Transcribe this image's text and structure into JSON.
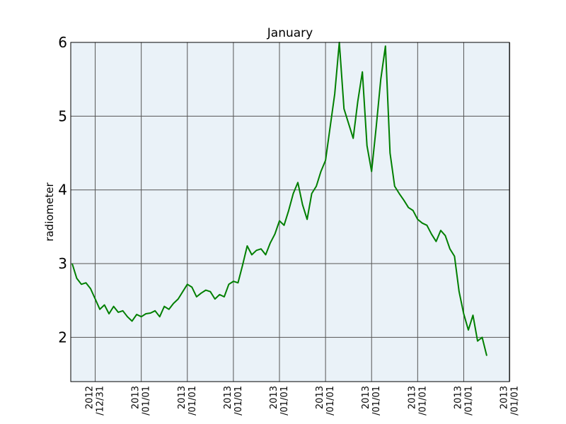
{
  "chart_data": {
    "type": "line",
    "title": "January",
    "xlabel": "",
    "ylabel": "radiometer",
    "ylim": [
      1.4,
      6.0
    ],
    "yticks": [
      2,
      3,
      4,
      5,
      6
    ],
    "grid": true,
    "legend": "none",
    "colors": {
      "line": "#007f00",
      "plot_background": "#eaf2f8",
      "grid": "#555555"
    },
    "xticks": [
      [
        "2012",
        "/12/31"
      ],
      [
        "2013",
        "/01/01"
      ],
      [
        "2013",
        "/01/01"
      ],
      [
        "2013",
        "/01/01"
      ],
      [
        "2013",
        "/01/01"
      ],
      [
        "2013",
        "/01/01"
      ],
      [
        "2013",
        "/01/01"
      ],
      [
        "2013",
        "/01/01"
      ],
      [
        "2013",
        "/01/01"
      ],
      [
        "2013",
        "/01/01"
      ]
    ],
    "xtick_index": [
      5,
      15,
      25,
      35,
      45,
      55,
      65,
      75,
      85,
      95
    ],
    "series": [
      {
        "values": [
          3.0,
          2.8,
          2.72,
          2.74,
          2.66,
          2.52,
          2.38,
          2.44,
          2.32,
          2.42,
          2.34,
          2.36,
          2.28,
          2.22,
          2.31,
          2.28,
          2.32,
          2.33,
          2.36,
          2.28,
          2.42,
          2.38,
          2.46,
          2.52,
          2.62,
          2.72,
          2.68,
          2.55,
          2.6,
          2.64,
          2.62,
          2.52,
          2.58,
          2.55,
          2.72,
          2.76,
          2.74,
          2.98,
          3.24,
          3.12,
          3.18,
          3.2,
          3.12,
          3.28,
          3.4,
          3.58,
          3.52,
          3.72,
          3.95,
          4.1,
          3.8,
          3.6,
          3.95,
          4.05,
          4.25,
          4.4,
          4.85,
          5.3,
          6.0,
          5.1,
          4.9,
          4.7,
          5.2,
          5.6,
          4.6,
          4.25,
          4.85,
          5.5,
          5.95,
          4.5,
          4.05,
          3.95,
          3.86,
          3.76,
          3.72,
          3.6,
          3.55,
          3.52,
          3.4,
          3.3,
          3.45,
          3.38,
          3.2,
          3.1,
          2.62,
          2.32,
          2.1,
          2.3,
          1.95,
          2.0,
          1.75
        ]
      }
    ]
  }
}
